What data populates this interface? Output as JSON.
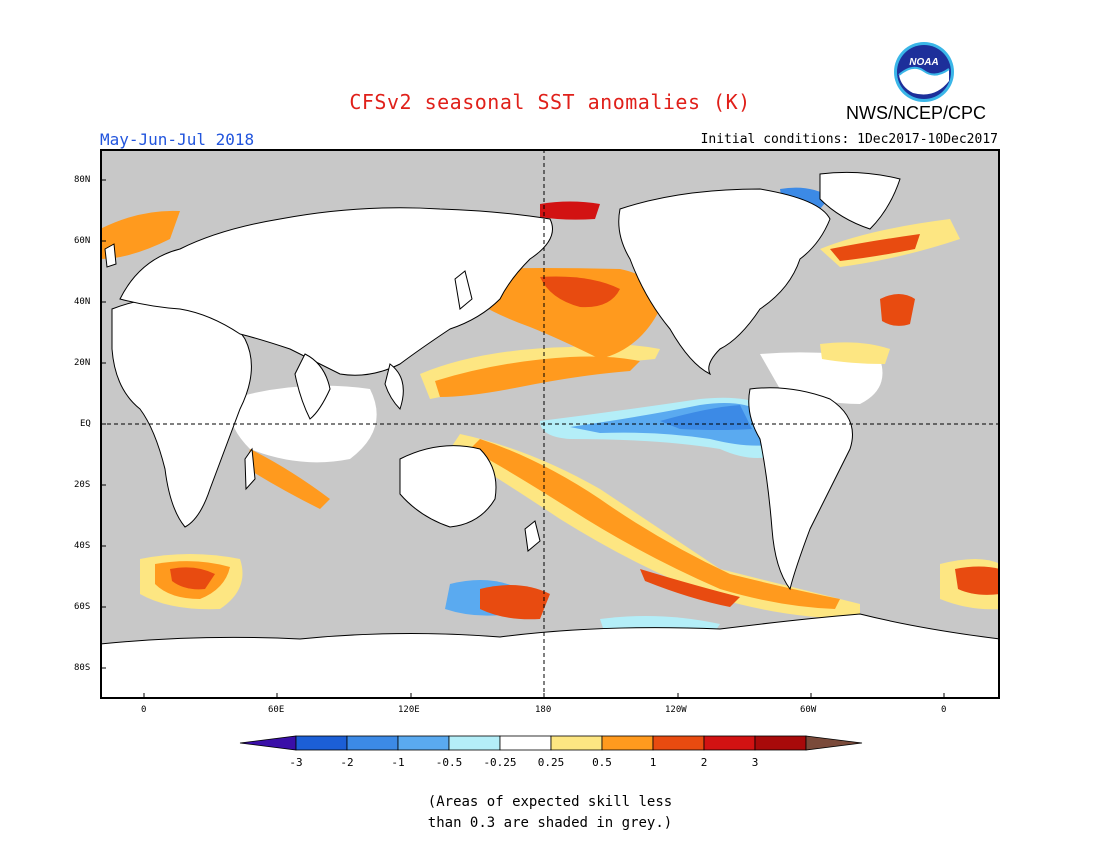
{
  "header": {
    "title": "CFSv2 seasonal SST anomalies (K)",
    "agency": "NWS/NCEP/CPC",
    "logo_text": "NOAA",
    "period": "May-Jun-Jul 2018",
    "initial_conditions": "Initial conditions: 1Dec2017-10Dec2017"
  },
  "map": {
    "projection": "equirectangular",
    "lat_labels": [
      "80N",
      "60N",
      "40N",
      "20N",
      "EQ",
      "20S",
      "40S",
      "60S",
      "80S"
    ],
    "lon_labels": [
      "0",
      "60E",
      "120E",
      "180",
      "120W",
      "60W",
      "0"
    ],
    "land_color": "#ffffff",
    "no_skill_color": "#c8c8c8",
    "reference_lines": [
      "EQ",
      "180"
    ]
  },
  "legend": {
    "tick_labels": [
      "-3",
      "-2",
      "-1",
      "-0.5",
      "-0.25",
      "0.25",
      "0.5",
      "1",
      "2",
      "3"
    ],
    "colors": [
      "#3a0fa8",
      "#1c5fd6",
      "#3c8ae6",
      "#5aaaf0",
      "#b4eef8",
      "#ffffff",
      "#fde682",
      "#ff9a1e",
      "#e84b10",
      "#d21212",
      "#a80a0a",
      "#7a4a3a"
    ]
  },
  "note": {
    "line1": "(Areas of expected skill less",
    "line2": "than 0.3 are shaded in grey.)"
  }
}
